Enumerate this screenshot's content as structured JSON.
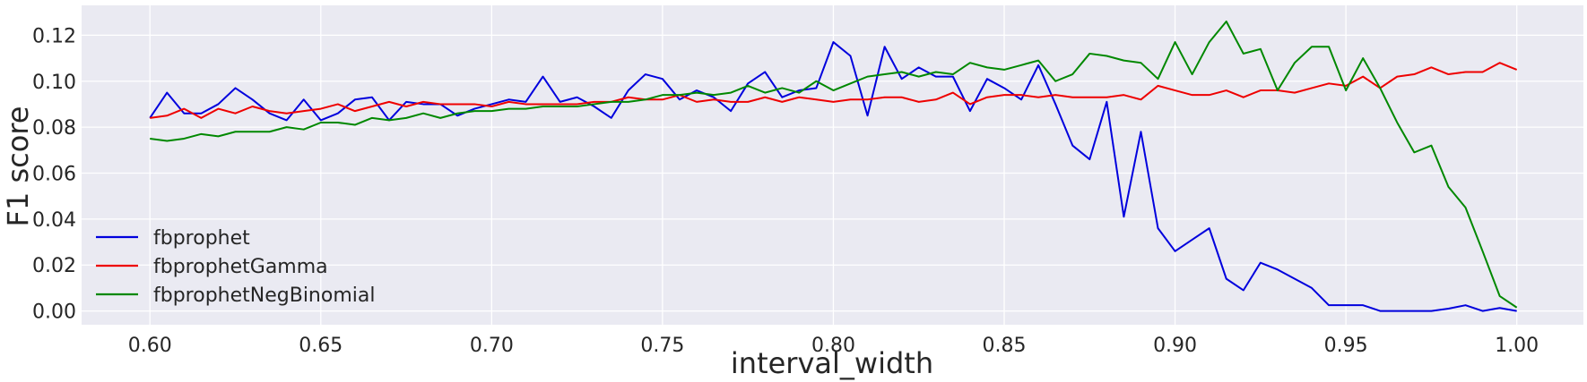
{
  "chart_data": {
    "type": "line",
    "title": "",
    "xlabel": "interval_width",
    "ylabel": "F1 score",
    "xlim": [
      0.58,
      1.0195
    ],
    "ylim": [
      -0.006,
      0.133
    ],
    "x_ticks": [
      "0.60",
      "0.65",
      "0.70",
      "0.75",
      "0.80",
      "0.85",
      "0.90",
      "0.95",
      "1.00"
    ],
    "y_ticks": [
      "0.00",
      "0.02",
      "0.04",
      "0.06",
      "0.08",
      "0.10",
      "0.12"
    ],
    "grid": true,
    "legend_position": "lower-left",
    "x": [
      0.6,
      0.605,
      0.61,
      0.615,
      0.62,
      0.625,
      0.63,
      0.635,
      0.64,
      0.645,
      0.65,
      0.655,
      0.66,
      0.665,
      0.67,
      0.675,
      0.68,
      0.685,
      0.69,
      0.695,
      0.7,
      0.705,
      0.71,
      0.715,
      0.72,
      0.725,
      0.73,
      0.735,
      0.74,
      0.745,
      0.75,
      0.755,
      0.76,
      0.765,
      0.77,
      0.775,
      0.78,
      0.785,
      0.79,
      0.795,
      0.8,
      0.805,
      0.81,
      0.815,
      0.82,
      0.825,
      0.83,
      0.835,
      0.84,
      0.845,
      0.85,
      0.855,
      0.86,
      0.865,
      0.87,
      0.875,
      0.88,
      0.885,
      0.89,
      0.895,
      0.9,
      0.905,
      0.91,
      0.915,
      0.92,
      0.925,
      0.93,
      0.935,
      0.94,
      0.945,
      0.95,
      0.955,
      0.96,
      0.965,
      0.97,
      0.975,
      0.98,
      0.985,
      0.99,
      0.995,
      1.0
    ],
    "series": [
      {
        "name": "fbprophet",
        "color": "#0000dd",
        "values": [
          0.084,
          0.095,
          0.086,
          0.086,
          0.09,
          0.097,
          0.092,
          0.086,
          0.083,
          0.092,
          0.083,
          0.086,
          0.092,
          0.093,
          0.083,
          0.091,
          0.09,
          0.09,
          0.085,
          0.088,
          0.09,
          0.092,
          0.091,
          0.102,
          0.091,
          0.093,
          0.089,
          0.084,
          0.096,
          0.103,
          0.101,
          0.092,
          0.096,
          0.093,
          0.087,
          0.099,
          0.104,
          0.093,
          0.096,
          0.097,
          0.117,
          0.111,
          0.085,
          0.115,
          0.101,
          0.106,
          0.102,
          0.102,
          0.087,
          0.101,
          0.097,
          0.092,
          0.107,
          0.09,
          0.072,
          0.066,
          0.091,
          0.041,
          0.078,
          0.036,
          0.026,
          0.031,
          0.036,
          0.014,
          0.009,
          0.021,
          0.018,
          0.014,
          0.01,
          0.0025,
          0.0025,
          0.0025,
          0.0,
          0.0,
          0.0,
          0.0,
          0.001,
          0.0025,
          0.0,
          0.0013,
          0.0
        ]
      },
      {
        "name": "fbprophetGamma",
        "color": "#ee0000",
        "values": [
          0.084,
          0.085,
          0.088,
          0.084,
          0.088,
          0.086,
          0.089,
          0.087,
          0.086,
          0.087,
          0.088,
          0.09,
          0.087,
          0.089,
          0.091,
          0.089,
          0.091,
          0.09,
          0.09,
          0.09,
          0.089,
          0.091,
          0.09,
          0.09,
          0.09,
          0.09,
          0.091,
          0.091,
          0.093,
          0.092,
          0.092,
          0.094,
          0.091,
          0.092,
          0.091,
          0.091,
          0.093,
          0.091,
          0.093,
          0.092,
          0.091,
          0.092,
          0.092,
          0.093,
          0.093,
          0.091,
          0.092,
          0.095,
          0.09,
          0.093,
          0.094,
          0.094,
          0.093,
          0.094,
          0.093,
          0.093,
          0.093,
          0.094,
          0.092,
          0.098,
          0.096,
          0.094,
          0.094,
          0.096,
          0.093,
          0.096,
          0.096,
          0.095,
          0.097,
          0.099,
          0.098,
          0.102,
          0.097,
          0.102,
          0.103,
          0.106,
          0.103,
          0.104,
          0.104,
          0.108,
          0.105
        ]
      },
      {
        "name": "fbprophetNegBinomial",
        "color": "#008800",
        "values": [
          0.075,
          0.074,
          0.075,
          0.077,
          0.076,
          0.078,
          0.078,
          0.078,
          0.08,
          0.079,
          0.082,
          0.082,
          0.081,
          0.084,
          0.083,
          0.084,
          0.086,
          0.084,
          0.086,
          0.087,
          0.087,
          0.088,
          0.088,
          0.089,
          0.089,
          0.089,
          0.09,
          0.091,
          0.091,
          0.092,
          0.094,
          0.094,
          0.095,
          0.094,
          0.095,
          0.098,
          0.095,
          0.097,
          0.095,
          0.1,
          0.096,
          0.099,
          0.102,
          0.103,
          0.104,
          0.102,
          0.104,
          0.103,
          0.108,
          0.106,
          0.105,
          0.107,
          0.109,
          0.1,
          0.103,
          0.112,
          0.111,
          0.109,
          0.108,
          0.101,
          0.117,
          0.103,
          0.117,
          0.126,
          0.112,
          0.114,
          0.096,
          0.108,
          0.115,
          0.115,
          0.096,
          0.11,
          0.097,
          0.082,
          0.069,
          0.072,
          0.054,
          0.045,
          0.026,
          0.0065,
          0.0015
        ]
      }
    ]
  }
}
